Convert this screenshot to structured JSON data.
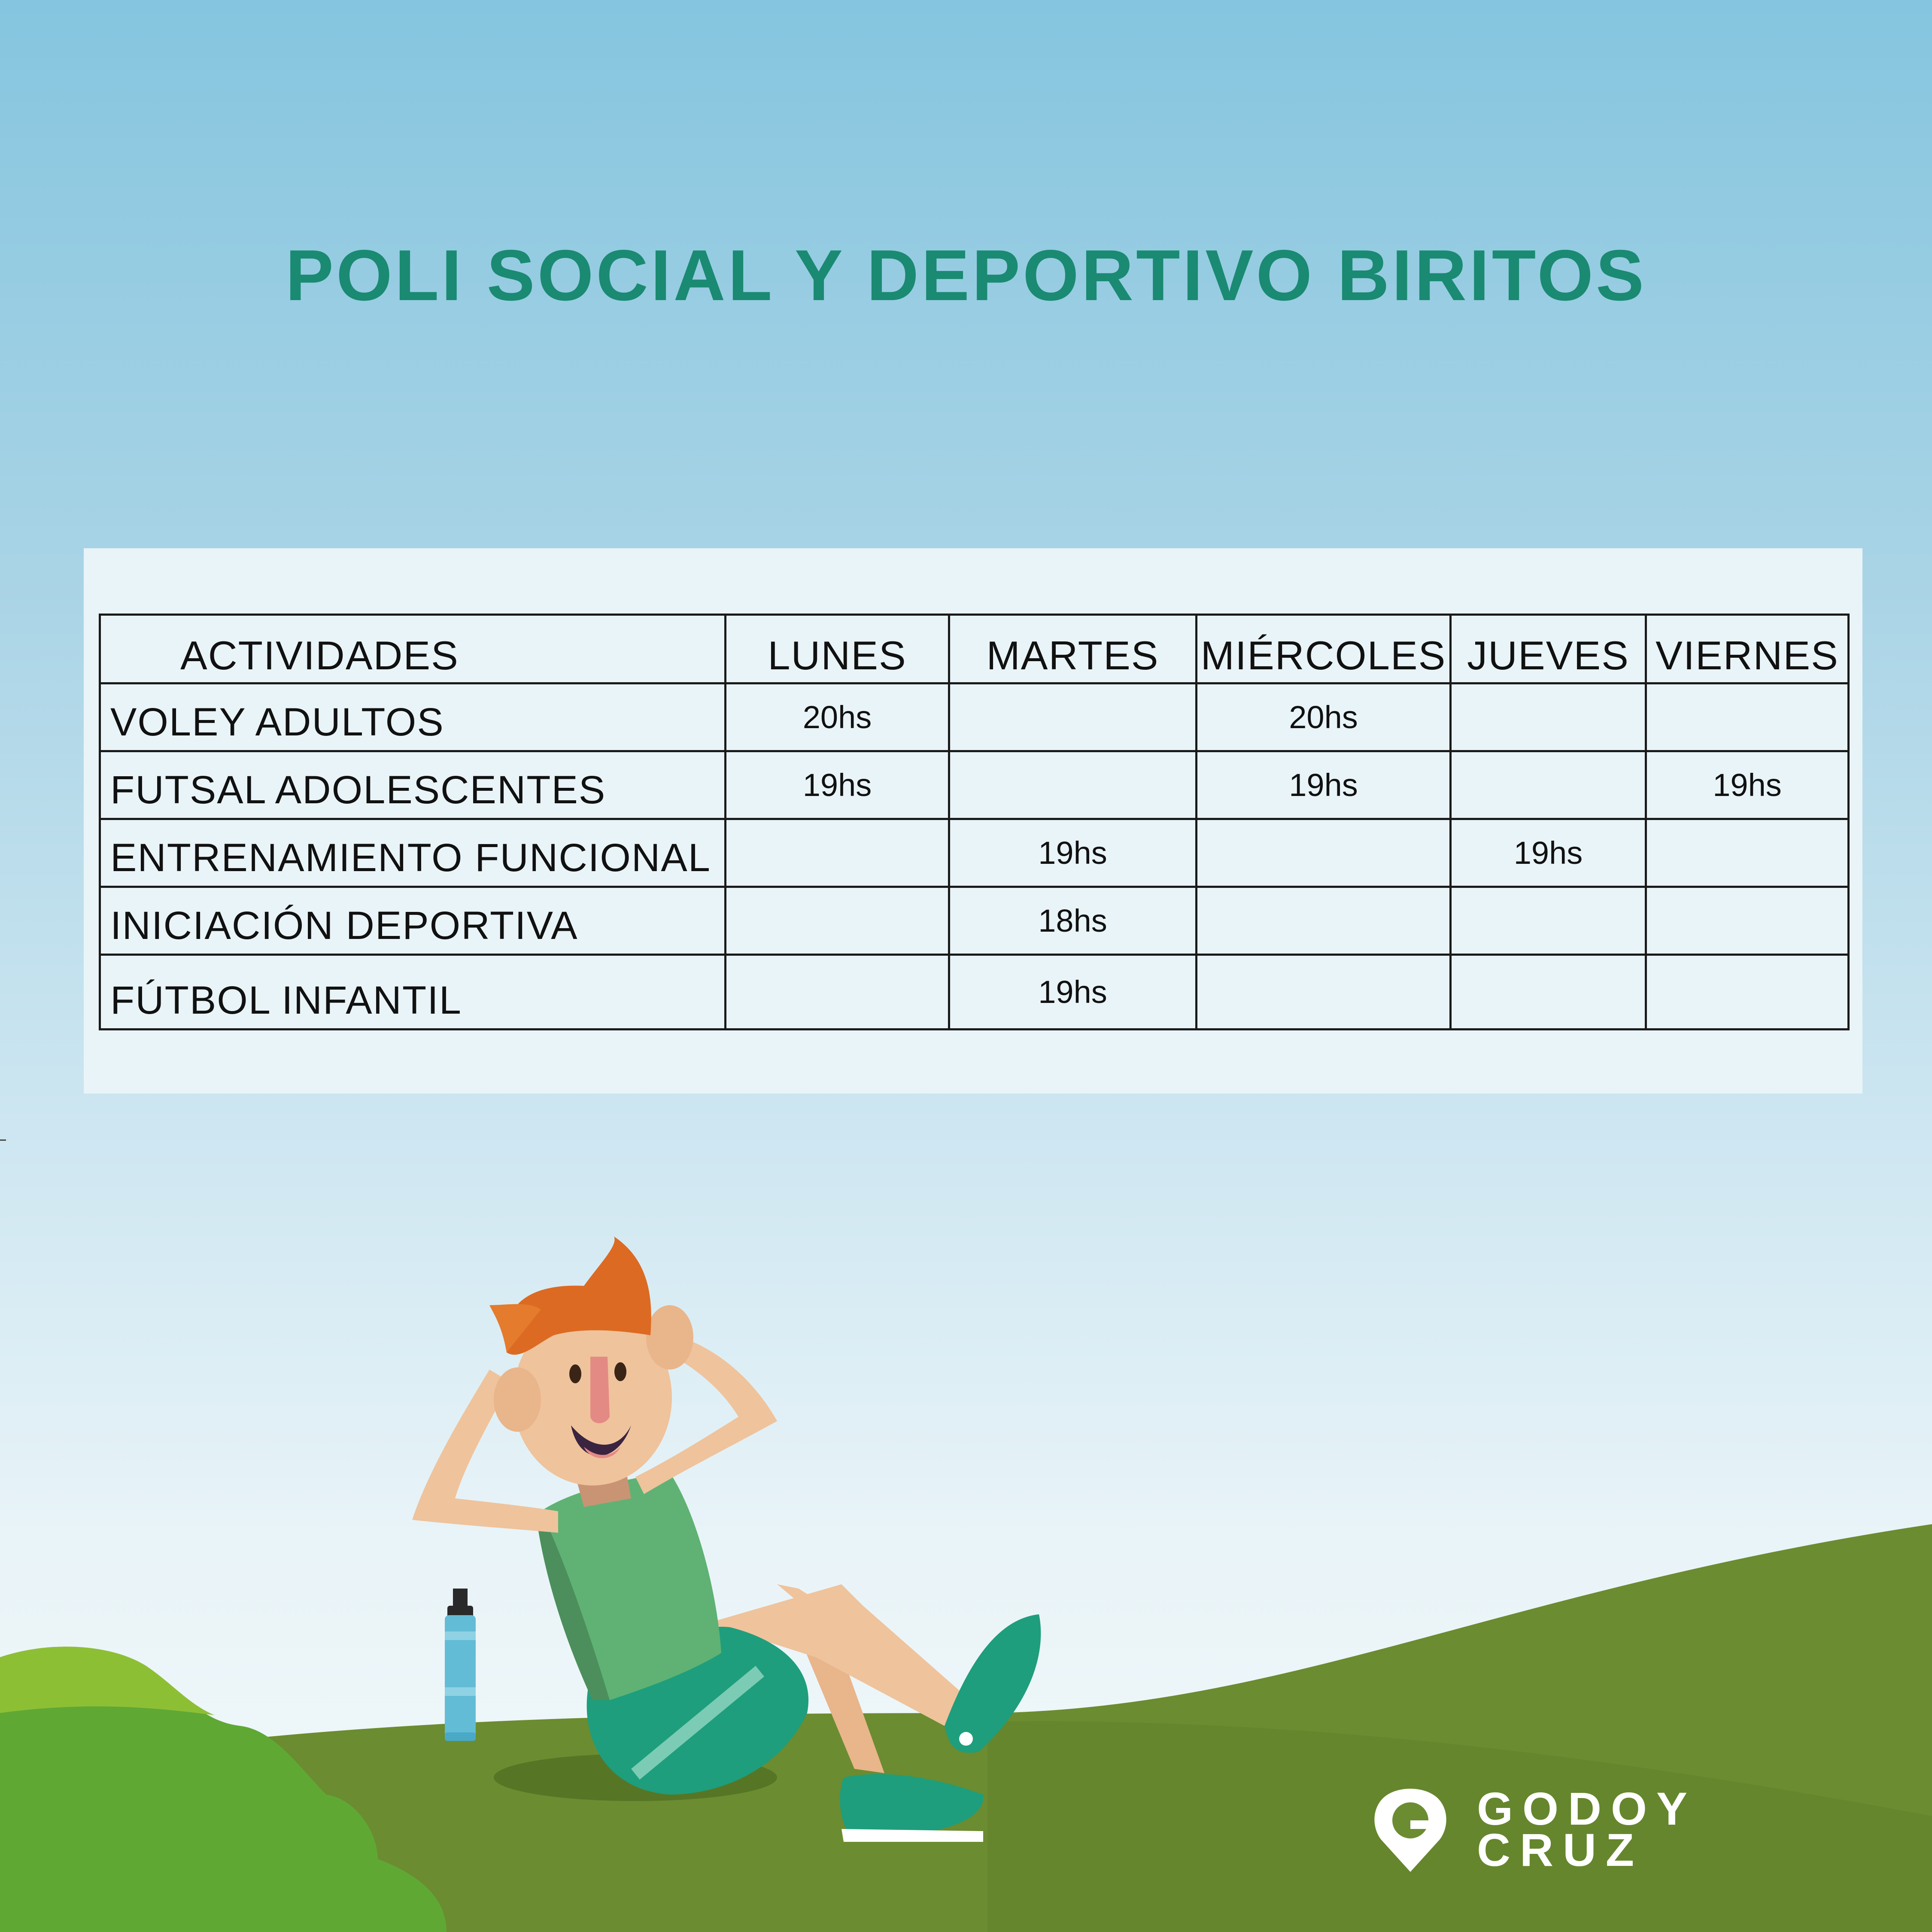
{
  "title": "POLI SOCIAL Y DEPORTIVO BIRITOS",
  "schedule": {
    "headers": [
      "ACTIVIDADES",
      "LUNES",
      "MARTES",
      "MIÉRCOLES",
      "JUEVES",
      "VIERNES"
    ],
    "rows": [
      {
        "activity": "VOLEY ADULTOS",
        "cells": [
          "20hs",
          "",
          "20hs",
          "",
          ""
        ]
      },
      {
        "activity": "FUTSAL ADOLESCENTES",
        "cells": [
          "19hs",
          "",
          "19hs",
          "",
          "19hs"
        ]
      },
      {
        "activity": "ENTRENAMIENTO FUNCIONAL",
        "cells": [
          "",
          "19hs",
          "",
          "19hs",
          ""
        ]
      },
      {
        "activity": "INICIACIÓN DEPORTIVA",
        "cells": [
          "",
          "18hs",
          "",
          "",
          ""
        ]
      },
      {
        "activity": "FÚTBOL INFANTIL",
        "cells": [
          "",
          "19hs",
          "",
          "",
          ""
        ]
      }
    ]
  },
  "logo": {
    "line1": "GODOY",
    "line2": "CRUZ"
  },
  "illustration": {
    "subject": "boy-doing-situps-icon",
    "bottle": "water-bottle-icon",
    "bush": "bush-icon",
    "hill": "hill-icon"
  },
  "colors": {
    "title": "#1a8a72",
    "sky_top": "#85c5df",
    "grass": "#6b8c30",
    "bush": "#5fa834",
    "shirt": "#5fb274",
    "shorts": "#1e9e7c",
    "hair": "#dd6a22",
    "skin": "#efc39c"
  }
}
